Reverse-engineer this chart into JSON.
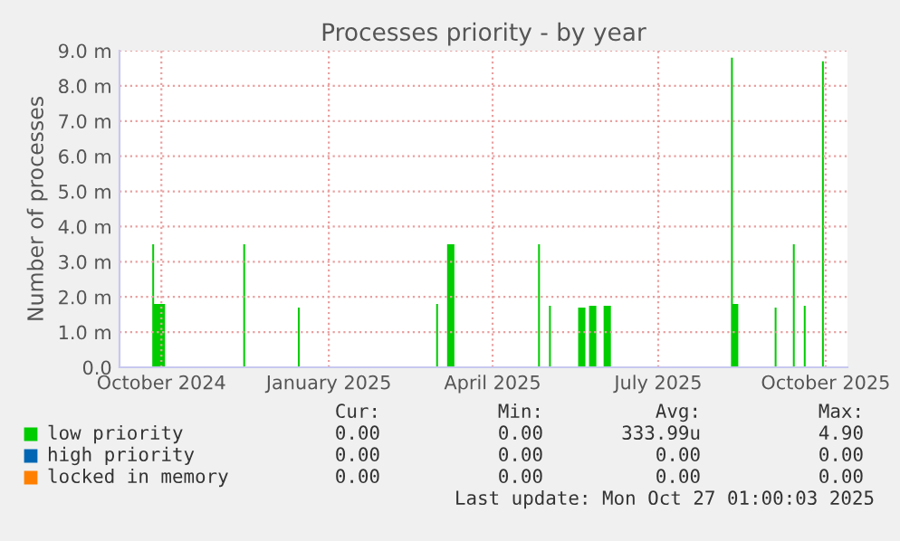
{
  "chart_data": {
    "type": "area",
    "title": "Processes priority - by year",
    "ylabel": "Number of processes",
    "x": [
      "2024-09-22",
      "2024-10-10",
      "2024-10-11",
      "2024-10-17",
      "2024-11-29",
      "2024-11-30",
      "2024-12-29",
      "2024-12-30",
      "2025-03-15",
      "2025-03-16",
      "2025-03-21",
      "2025-03-25",
      "2025-05-10",
      "2025-05-11",
      "2025-05-16",
      "2025-05-17",
      "2025-06-01",
      "2025-06-05",
      "2025-06-07",
      "2025-06-11",
      "2025-06-15",
      "2025-06-19",
      "2025-08-24",
      "2025-08-25",
      "2025-08-28",
      "2025-09-17",
      "2025-09-18",
      "2025-09-27",
      "2025-09-28",
      "2025-10-03",
      "2025-10-04",
      "2025-10-13",
      "2025-10-14",
      "2025-10-27"
    ],
    "series": [
      {
        "name": "low priority",
        "color": "#00cc00",
        "values": [
          0,
          3.5,
          1.8,
          0,
          3.5,
          0,
          1.7,
          0,
          1.8,
          0,
          3.5,
          0,
          3.5,
          0,
          1.75,
          0,
          1.7,
          0,
          1.75,
          0,
          1.75,
          0,
          8.8,
          1.8,
          0,
          1.7,
          0,
          3.5,
          0,
          1.75,
          0,
          8.7,
          0,
          0
        ]
      },
      {
        "name": "high priority",
        "color": "#0066b3",
        "type": "line",
        "values": [
          null,
          null,
          null,
          null,
          null,
          null,
          null,
          null,
          null,
          null,
          null,
          null,
          null,
          null,
          null,
          null,
          null,
          null,
          null,
          null,
          null,
          null,
          null,
          null,
          null,
          null,
          null,
          null,
          null,
          null,
          null,
          null,
          null,
          null
        ]
      },
      {
        "name": "locked in memory",
        "color": "#ff8000",
        "type": "line",
        "values": [
          null,
          null,
          null,
          null,
          null,
          null,
          null,
          null,
          null,
          null,
          null,
          null,
          null,
          null,
          null,
          null,
          null,
          null,
          null,
          null,
          null,
          null,
          null,
          null,
          null,
          null,
          null,
          null,
          null,
          null,
          null,
          null,
          null,
          null
        ]
      }
    ],
    "xlim": [
      "2024-09-22",
      "2025-10-27"
    ],
    "xticks": [
      {
        "value": "2024-10-15",
        "label": "October 2024"
      },
      {
        "value": "2025-01-15",
        "label": "January 2025"
      },
      {
        "value": "2025-04-15",
        "label": "April 2025"
      },
      {
        "value": "2025-07-15",
        "label": "July 2025"
      },
      {
        "value": "2025-10-15",
        "label": "October 2025"
      }
    ],
    "ylim": [
      0,
      9
    ],
    "yticks": [
      {
        "value": 0,
        "label": "0.0"
      },
      {
        "value": 1,
        "label": "1.0 m"
      },
      {
        "value": 2,
        "label": "2.0 m"
      },
      {
        "value": 3,
        "label": "3.0 m"
      },
      {
        "value": 4,
        "label": "4.0 m"
      },
      {
        "value": 5,
        "label": "5.0 m"
      },
      {
        "value": 6,
        "label": "6.0 m"
      },
      {
        "value": 7,
        "label": "7.0 m"
      },
      {
        "value": 8,
        "label": "8.0 m"
      },
      {
        "value": 9,
        "label": "9.0 m"
      }
    ],
    "grid": true,
    "legend": "bottom",
    "annotations": [
      "Cur:",
      "Min:",
      "Avg:",
      "Max:",
      "0.00",
      "0.00",
      "333.99u",
      "4.90",
      "0.00",
      "0.00",
      "0.00",
      "0.00",
      "0.00",
      "0.00",
      "0.00",
      "0.00",
      "Last update: Mon Oct 27 01:00:03 2025"
    ]
  }
}
